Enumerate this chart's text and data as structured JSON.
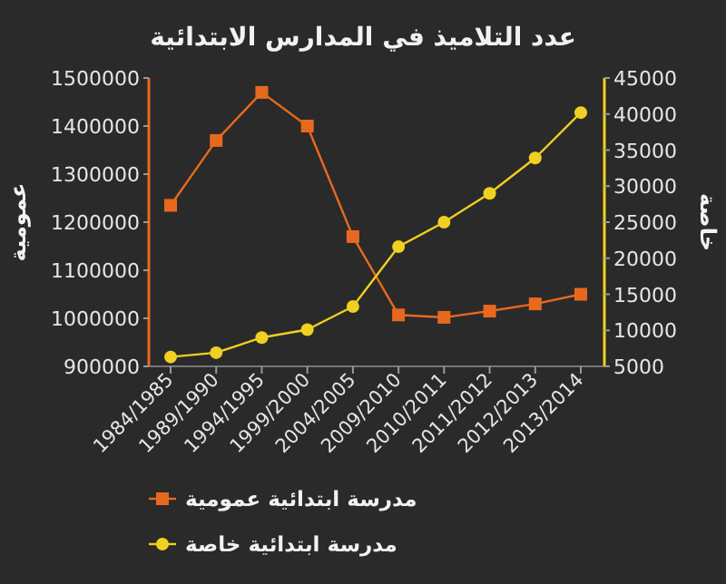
{
  "chart_data": {
    "type": "line",
    "title": "عدد التلاميذ في المدارس الابتدائية",
    "ylabel": "عمومية",
    "y2label": "خاصة",
    "categories": [
      "1984/1985",
      "1989/1990",
      "1994/1995",
      "1999/2000",
      "2004/2005",
      "2009/2010",
      "2010/2011",
      "2011/2012",
      "2012/2013",
      "2013/2014"
    ],
    "series": [
      {
        "name": "مدرسة ابتدائية عمومية",
        "color": "#e8691e",
        "marker": "square",
        "values": [
          1235000,
          1370000,
          1470000,
          1400000,
          1170000,
          1007000,
          1002000,
          1015000,
          1030000,
          1050000
        ]
      },
      {
        "name": "مدرسة ابتدائية خاصة",
        "color": "#f0d020",
        "marker": "circle",
        "axis": "y2",
        "values": [
          6300,
          6900,
          9000,
          10100,
          13300,
          21600,
          25000,
          29000,
          33900,
          40200
        ]
      }
    ],
    "ylim": [
      900000,
      1500000
    ],
    "yticks": [
      900000,
      1000000,
      1100000,
      1200000,
      1300000,
      1400000,
      1500000
    ],
    "y2lim": [
      5000,
      45000
    ],
    "y2ticks": [
      5000,
      10000,
      15000,
      20000,
      25000,
      30000,
      35000,
      40000,
      45000
    ],
    "grid": false,
    "legend": "bottom"
  }
}
